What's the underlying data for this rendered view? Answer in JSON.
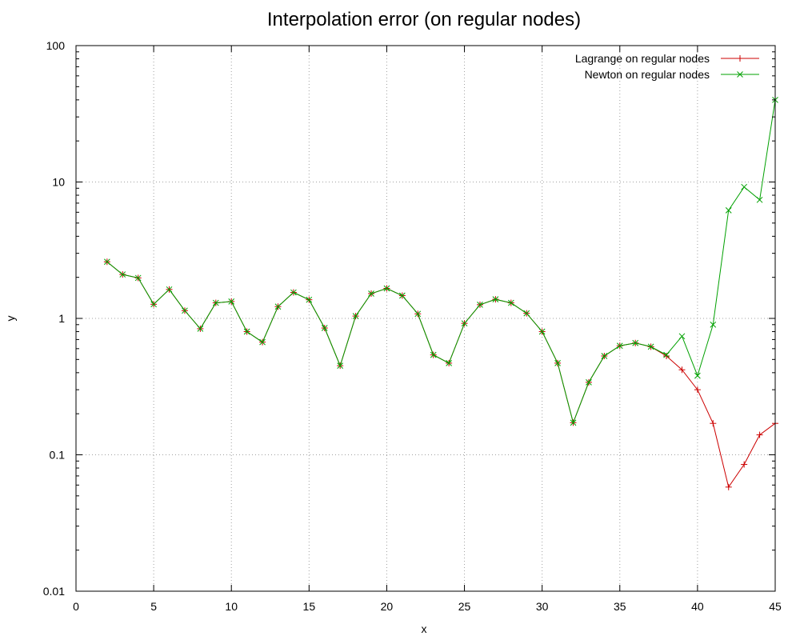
{
  "chart_data": {
    "type": "line",
    "title": "Interpolation error (on regular nodes)",
    "xlabel": "x",
    "ylabel": "y",
    "xlim": [
      0,
      45
    ],
    "ylim": [
      0.01,
      100
    ],
    "yscale": "log",
    "grid": true,
    "legend_position": "top-right",
    "x_ticks": [
      0,
      5,
      10,
      15,
      20,
      25,
      30,
      35,
      40,
      45
    ],
    "y_ticks": [
      0.01,
      0.1,
      1,
      10,
      100
    ],
    "y_tick_labels": [
      "0.01",
      "0.1",
      "1",
      "10",
      "100"
    ],
    "series": [
      {
        "name": "Lagrange on regular nodes",
        "color": "#cc0000",
        "marker": "plus",
        "x": [
          2,
          3,
          4,
          5,
          6,
          7,
          8,
          9,
          10,
          11,
          12,
          13,
          14,
          15,
          16,
          17,
          18,
          19,
          20,
          21,
          22,
          23,
          24,
          25,
          26,
          27,
          28,
          29,
          30,
          31,
          32,
          33,
          34,
          35,
          36,
          37,
          38,
          39,
          40,
          41,
          42,
          43,
          44,
          45
        ],
        "y": [
          2.6,
          2.1,
          1.98,
          1.27,
          1.63,
          1.14,
          0.84,
          1.3,
          1.33,
          0.8,
          0.67,
          1.22,
          1.55,
          1.37,
          0.85,
          0.45,
          1.04,
          1.52,
          1.66,
          1.47,
          1.08,
          0.54,
          0.47,
          0.92,
          1.26,
          1.38,
          1.3,
          1.09,
          0.8,
          0.47,
          0.172,
          0.34,
          0.53,
          0.63,
          0.66,
          0.62,
          0.53,
          0.42,
          0.3,
          0.17,
          0.058,
          0.085,
          0.14,
          0.17
        ]
      },
      {
        "name": "Newton on regular nodes",
        "color": "#00a000",
        "marker": "cross",
        "x": [
          2,
          3,
          4,
          5,
          6,
          7,
          8,
          9,
          10,
          11,
          12,
          13,
          14,
          15,
          16,
          17,
          18,
          19,
          20,
          21,
          22,
          23,
          24,
          25,
          26,
          27,
          28,
          29,
          30,
          31,
          32,
          33,
          34,
          35,
          36,
          37,
          38,
          39,
          40,
          41,
          42,
          43,
          44,
          45
        ],
        "y": [
          2.6,
          2.1,
          1.98,
          1.27,
          1.63,
          1.14,
          0.84,
          1.3,
          1.33,
          0.8,
          0.67,
          1.22,
          1.55,
          1.37,
          0.85,
          0.45,
          1.04,
          1.52,
          1.66,
          1.47,
          1.08,
          0.54,
          0.47,
          0.92,
          1.26,
          1.38,
          1.3,
          1.09,
          0.8,
          0.47,
          0.172,
          0.34,
          0.53,
          0.63,
          0.66,
          0.62,
          0.54,
          0.74,
          0.38,
          0.9,
          6.2,
          9.2,
          7.4,
          40
        ]
      }
    ]
  }
}
